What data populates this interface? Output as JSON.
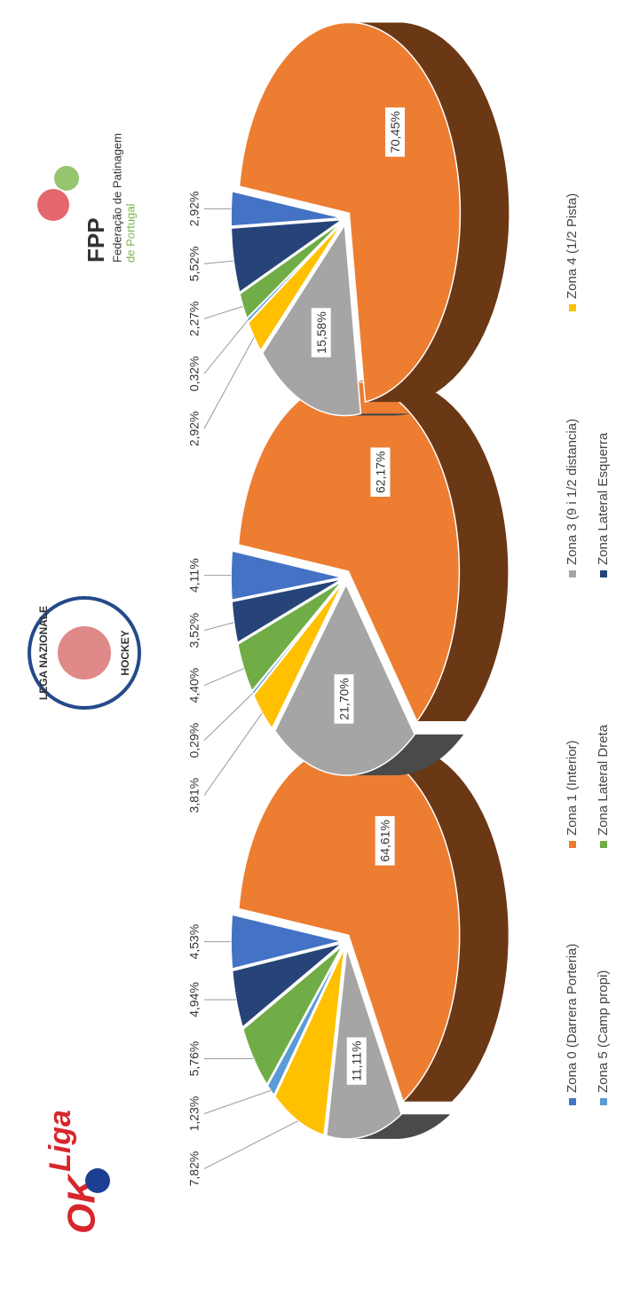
{
  "legend": {
    "labels": [
      "Zona 0 (Darrera Porteria)",
      "Zona 1 (Interior)",
      "Zona 3 (9 i 1/2 distancia)",
      "Zona 4 (1/2 Pista)",
      "Zona 5 (Camp propi)",
      "Zona Lateral Dreta",
      "Zona Lateral Esquerra"
    ],
    "colors": [
      "#4472c4",
      "#ed7d31",
      "#a5a5a5",
      "#ffc000",
      "#5b9bd5",
      "#70ad47",
      "#264478"
    ]
  },
  "logos": {
    "okliga": {
      "ok": "OK",
      "liga": "Liga"
    },
    "lega": {
      "top": "LEGA NAZIONALE",
      "bottom": "HOCKEY"
    },
    "fpp": {
      "title": "FPP",
      "line1": "Federação de Patinagem",
      "line2": "de Portugal"
    }
  },
  "chart_data": [
    {
      "type": "pie",
      "values": [
        4.53,
        64.61,
        11.11,
        7.82,
        1.23,
        5.76,
        4.94
      ],
      "value_labels": [
        "4,53%",
        "64,61%",
        "11,11%",
        "7,82%",
        "1,23%",
        "5,76%",
        "4,94%"
      ]
    },
    {
      "type": "pie",
      "values": [
        4.11,
        62.17,
        21.7,
        3.81,
        0.29,
        4.4,
        3.52
      ],
      "value_labels": [
        "4,11%",
        "62,17%",
        "21,70%",
        "3,81%",
        "0,29%",
        "4,40%",
        "3,52%"
      ]
    },
    {
      "type": "pie",
      "values": [
        2.92,
        70.45,
        15.58,
        2.92,
        0.32,
        2.27,
        5.52
      ],
      "value_labels": [
        "2,92%",
        "70,45%",
        "15,58%",
        "2,92%",
        "0,32%",
        "2,27%",
        "5,52%"
      ]
    }
  ]
}
